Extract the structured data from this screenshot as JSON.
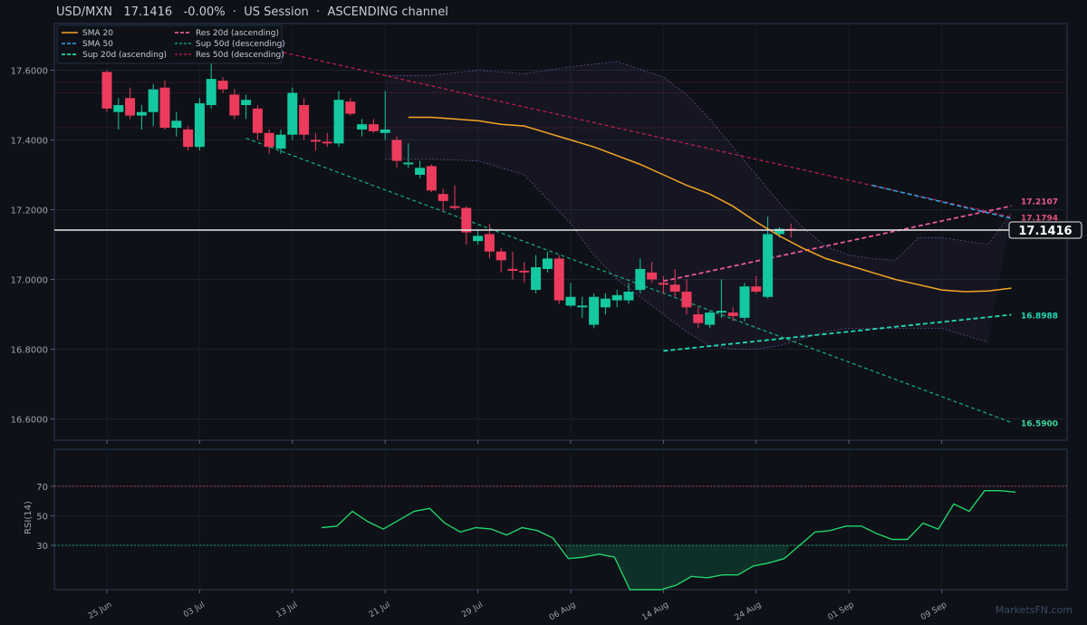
{
  "header": {
    "pair": "USD/MXN",
    "price": "17.1416",
    "change": "-0.00%",
    "sep1": "·",
    "session": "US Session",
    "sep2": "·",
    "channel": "ASCENDING channel"
  },
  "watermark": "MarketsFN.com",
  "colors": {
    "background": "#0e1117",
    "up": "#14c8a0",
    "down": "#ec3b5c",
    "sma20": "#f5a623",
    "sma50": "#29a8e8",
    "sup20": "#22d8b4",
    "res20": "#e8589c",
    "sup50": "#16b07e",
    "res50": "#c42050",
    "rsi": "#22d36a",
    "band": "#7c5aa6"
  },
  "chart_data": [
    {
      "type": "candlestick",
      "title": "",
      "ylim": [
        16.54,
        17.74
      ],
      "yticks": [
        16.6,
        16.8,
        17.0,
        17.2,
        17.4,
        17.6
      ],
      "ytick_labels": [
        "16.6000",
        "16.8000",
        "17.0000",
        "17.2000",
        "17.4000",
        "17.6000"
      ],
      "xtick_labels": [
        "25 Jun",
        "03 Jul",
        "13 Jul",
        "21 Jul",
        "29 Jul",
        "06 Aug",
        "14 Aug",
        "24 Aug",
        "01 Sep",
        "09 Sep"
      ],
      "xtick_index": [
        1,
        9,
        17,
        25,
        33,
        41,
        49,
        57,
        65,
        73
      ],
      "candles": [
        {
          "o": 17.595,
          "h": 17.6,
          "l": 17.48,
          "c": 17.49
        },
        {
          "o": 17.48,
          "h": 17.52,
          "l": 17.43,
          "c": 17.5
        },
        {
          "o": 17.52,
          "h": 17.55,
          "l": 17.46,
          "c": 17.47
        },
        {
          "o": 17.47,
          "h": 17.5,
          "l": 17.43,
          "c": 17.48
        },
        {
          "o": 17.48,
          "h": 17.56,
          "l": 17.44,
          "c": 17.545
        },
        {
          "o": 17.55,
          "h": 17.57,
          "l": 17.43,
          "c": 17.435
        },
        {
          "o": 17.435,
          "h": 17.48,
          "l": 17.41,
          "c": 17.455
        },
        {
          "o": 17.43,
          "h": 17.44,
          "l": 17.37,
          "c": 17.38
        },
        {
          "o": 17.38,
          "h": 17.52,
          "l": 17.37,
          "c": 17.505
        },
        {
          "o": 17.5,
          "h": 17.63,
          "l": 17.49,
          "c": 17.575
        },
        {
          "o": 17.57,
          "h": 17.58,
          "l": 17.535,
          "c": 17.545
        },
        {
          "o": 17.53,
          "h": 17.545,
          "l": 17.46,
          "c": 17.47
        },
        {
          "o": 17.5,
          "h": 17.53,
          "l": 17.46,
          "c": 17.515
        },
        {
          "o": 17.49,
          "h": 17.5,
          "l": 17.4,
          "c": 17.42
        },
        {
          "o": 17.42,
          "h": 17.43,
          "l": 17.36,
          "c": 17.38
        },
        {
          "o": 17.375,
          "h": 17.43,
          "l": 17.36,
          "c": 17.415
        },
        {
          "o": 17.415,
          "h": 17.55,
          "l": 17.4,
          "c": 17.535
        },
        {
          "o": 17.5,
          "h": 17.52,
          "l": 17.4,
          "c": 17.415
        },
        {
          "o": 17.4,
          "h": 17.42,
          "l": 17.37,
          "c": 17.395
        },
        {
          "o": 17.395,
          "h": 17.42,
          "l": 17.38,
          "c": 17.39
        },
        {
          "o": 17.39,
          "h": 17.54,
          "l": 17.38,
          "c": 17.515
        },
        {
          "o": 17.51,
          "h": 17.52,
          "l": 17.47,
          "c": 17.475
        },
        {
          "o": 17.43,
          "h": 17.46,
          "l": 17.41,
          "c": 17.445
        },
        {
          "o": 17.445,
          "h": 17.46,
          "l": 17.42,
          "c": 17.425
        },
        {
          "o": 17.42,
          "h": 17.54,
          "l": 17.4,
          "c": 17.43
        },
        {
          "o": 17.4,
          "h": 17.41,
          "l": 17.32,
          "c": 17.34
        },
        {
          "o": 17.33,
          "h": 17.39,
          "l": 17.32,
          "c": 17.335
        },
        {
          "o": 17.3,
          "h": 17.34,
          "l": 17.29,
          "c": 17.32
        },
        {
          "o": 17.325,
          "h": 17.33,
          "l": 17.25,
          "c": 17.255
        },
        {
          "o": 17.245,
          "h": 17.26,
          "l": 17.195,
          "c": 17.225
        },
        {
          "o": 17.21,
          "h": 17.27,
          "l": 17.2,
          "c": 17.205
        },
        {
          "o": 17.205,
          "h": 17.21,
          "l": 17.1,
          "c": 17.135
        },
        {
          "o": 17.11,
          "h": 17.14,
          "l": 17.1,
          "c": 17.125
        },
        {
          "o": 17.13,
          "h": 17.16,
          "l": 17.06,
          "c": 17.08
        },
        {
          "o": 17.08,
          "h": 17.09,
          "l": 17.02,
          "c": 17.055
        },
        {
          "o": 17.03,
          "h": 17.08,
          "l": 17.0,
          "c": 17.025
        },
        {
          "o": 17.025,
          "h": 17.05,
          "l": 16.99,
          "c": 17.02
        },
        {
          "o": 16.97,
          "h": 17.07,
          "l": 16.96,
          "c": 17.035
        },
        {
          "o": 17.03,
          "h": 17.08,
          "l": 17.02,
          "c": 17.06
        },
        {
          "o": 17.06,
          "h": 17.07,
          "l": 16.93,
          "c": 16.94
        },
        {
          "o": 16.925,
          "h": 16.99,
          "l": 16.92,
          "c": 16.95
        },
        {
          "o": 16.92,
          "h": 16.95,
          "l": 16.89,
          "c": 16.925
        },
        {
          "o": 16.87,
          "h": 16.96,
          "l": 16.86,
          "c": 16.95
        },
        {
          "o": 16.92,
          "h": 16.96,
          "l": 16.9,
          "c": 16.945
        },
        {
          "o": 16.94,
          "h": 16.97,
          "l": 16.92,
          "c": 16.955
        },
        {
          "o": 16.94,
          "h": 16.99,
          "l": 16.93,
          "c": 16.965
        },
        {
          "o": 16.97,
          "h": 17.06,
          "l": 16.96,
          "c": 17.03
        },
        {
          "o": 17.02,
          "h": 17.05,
          "l": 16.99,
          "c": 17.0
        },
        {
          "o": 16.99,
          "h": 17.01,
          "l": 16.96,
          "c": 16.985
        },
        {
          "o": 16.985,
          "h": 17.03,
          "l": 16.95,
          "c": 16.965
        },
        {
          "o": 16.965,
          "h": 17.0,
          "l": 16.9,
          "c": 16.92
        },
        {
          "o": 16.9,
          "h": 16.92,
          "l": 16.86,
          "c": 16.875
        },
        {
          "o": 16.87,
          "h": 16.91,
          "l": 16.86,
          "c": 16.905
        },
        {
          "o": 16.905,
          "h": 17.0,
          "l": 16.89,
          "c": 16.91
        },
        {
          "o": 16.905,
          "h": 16.92,
          "l": 16.88,
          "c": 16.895
        },
        {
          "o": 16.89,
          "h": 16.99,
          "l": 16.88,
          "c": 16.98
        },
        {
          "o": 16.98,
          "h": 17.01,
          "l": 16.96,
          "c": 16.965
        },
        {
          "o": 16.95,
          "h": 17.18,
          "l": 16.945,
          "c": 17.13
        },
        {
          "o": 17.13,
          "h": 17.15,
          "l": 17.12,
          "c": 17.145
        },
        {
          "o": 17.145,
          "h": 17.16,
          "l": 17.12,
          "c": 17.1416
        }
      ],
      "bar_index_offset": 0,
      "sma20": [
        [
          27,
          17.465
        ],
        [
          29,
          17.465
        ],
        [
          31,
          17.46
        ],
        [
          33,
          17.455
        ],
        [
          35,
          17.445
        ],
        [
          37,
          17.44
        ],
        [
          39,
          17.42
        ],
        [
          41,
          17.4
        ],
        [
          43,
          17.38
        ],
        [
          45,
          17.355
        ],
        [
          47,
          17.33
        ],
        [
          49,
          17.3
        ],
        [
          51,
          17.27
        ],
        [
          53,
          17.245
        ],
        [
          55,
          17.21
        ],
        [
          57,
          17.165
        ],
        [
          59,
          17.125
        ],
        [
          61,
          17.09
        ],
        [
          63,
          17.06
        ],
        [
          65,
          17.04
        ],
        [
          67,
          17.02
        ],
        [
          69,
          17.0
        ],
        [
          71,
          16.985
        ],
        [
          73,
          16.97
        ],
        [
          75,
          16.965
        ],
        [
          77,
          16.967
        ],
        [
          79,
          16.975
        ]
      ],
      "sma50": [
        [
          67,
          17.27
        ],
        [
          79,
          17.175
        ]
      ],
      "bollinger_upper": [
        [
          25,
          17.585
        ],
        [
          29,
          17.585
        ],
        [
          33,
          17.6
        ],
        [
          37,
          17.59
        ],
        [
          41,
          17.61
        ],
        [
          45,
          17.625
        ],
        [
          49,
          17.58
        ],
        [
          51,
          17.53
        ],
        [
          53,
          17.46
        ],
        [
          55,
          17.38
        ],
        [
          57,
          17.3
        ],
        [
          59,
          17.22
        ],
        [
          61,
          17.15
        ],
        [
          63,
          17.095
        ],
        [
          65,
          17.07
        ],
        [
          67,
          17.06
        ],
        [
          69,
          17.055
        ],
        [
          71,
          17.12
        ],
        [
          73,
          17.12
        ],
        [
          75,
          17.11
        ],
        [
          77,
          17.1
        ],
        [
          79,
          17.19
        ]
      ],
      "bollinger_lower": [
        [
          25,
          17.345
        ],
        [
          29,
          17.345
        ],
        [
          33,
          17.34
        ],
        [
          37,
          17.3
        ],
        [
          39,
          17.23
        ],
        [
          41,
          17.16
        ],
        [
          43,
          17.07
        ],
        [
          45,
          17.0
        ],
        [
          47,
          16.95
        ],
        [
          49,
          16.9
        ],
        [
          51,
          16.85
        ],
        [
          53,
          16.81
        ],
        [
          55,
          16.8
        ],
        [
          57,
          16.8
        ],
        [
          59,
          16.81
        ],
        [
          61,
          16.83
        ],
        [
          63,
          16.85
        ],
        [
          65,
          16.86
        ],
        [
          67,
          16.86
        ],
        [
          69,
          16.86
        ],
        [
          71,
          16.86
        ],
        [
          73,
          16.86
        ],
        [
          75,
          16.84
        ],
        [
          77,
          16.82
        ]
      ],
      "current_price": 17.1416,
      "current_price_label": "17.1416",
      "horizontal_dotted": [
        17.565,
        17.535,
        17.435
      ],
      "lines": [
        {
          "name": "Res 20d (ascending)",
          "from": [
            49,
            16.995
          ],
          "to": [
            79,
            17.2107
          ],
          "end_label": "17.2107"
        },
        {
          "name": "Res 50d (descending)",
          "from": [
            13,
            17.675
          ],
          "to": [
            79,
            17.1794
          ],
          "end_label": "17.1794"
        },
        {
          "name": "Sup 20d (ascending)",
          "from": [
            49,
            16.795
          ],
          "to": [
            79,
            16.8988
          ],
          "end_label": "16.8988"
        },
        {
          "name": "Sup 50d (descending)",
          "from": [
            13,
            17.405
          ],
          "to": [
            79,
            16.59
          ],
          "end_label": "16.5900"
        }
      ],
      "legend": {
        "placement": "top-left",
        "entries": [
          "SMA 20",
          "SMA 50",
          "Sup 20d (ascending)",
          "Res 20d (ascending)",
          "Sup 50d (descending)",
          "Res 50d (descending)"
        ]
      }
    },
    {
      "type": "line",
      "ylabel": "RSI(14)",
      "ylim": [
        0,
        95
      ],
      "yticks": [
        30,
        50,
        70
      ],
      "ytick_labels": [
        "30",
        "50",
        "70"
      ],
      "levels": [
        70,
        30
      ],
      "series": [
        {
          "values": [
            [
              17,
              42
            ],
            [
              18,
              43
            ],
            [
              19,
              53
            ],
            [
              20,
              46
            ],
            [
              21,
              41
            ],
            [
              22,
              47
            ],
            [
              23,
              53
            ],
            [
              24,
              55
            ],
            [
              25,
              45
            ],
            [
              26,
              39
            ],
            [
              27,
              42
            ],
            [
              28,
              41
            ],
            [
              29,
              37
            ],
            [
              30,
              42
            ],
            [
              31,
              40
            ],
            [
              32,
              35
            ],
            [
              33,
              21
            ],
            [
              34,
              22
            ],
            [
              35,
              24
            ],
            [
              36,
              22
            ],
            [
              37,
              0
            ],
            [
              38,
              0
            ],
            [
              39,
              0
            ],
            [
              40,
              3
            ],
            [
              41,
              9
            ],
            [
              42,
              8
            ],
            [
              43,
              10
            ],
            [
              44,
              10
            ],
            [
              45,
              16
            ],
            [
              46,
              18
            ],
            [
              47,
              21
            ],
            [
              48,
              30
            ],
            [
              49,
              39
            ],
            [
              50,
              40
            ],
            [
              51,
              43
            ],
            [
              52,
              43
            ],
            [
              53,
              38
            ],
            [
              54,
              34
            ],
            [
              55,
              34
            ],
            [
              56,
              45
            ],
            [
              57,
              41
            ],
            [
              58,
              58
            ],
            [
              59,
              53
            ],
            [
              60,
              67
            ],
            [
              61,
              67
            ],
            [
              62,
              66
            ]
          ]
        }
      ]
    }
  ]
}
